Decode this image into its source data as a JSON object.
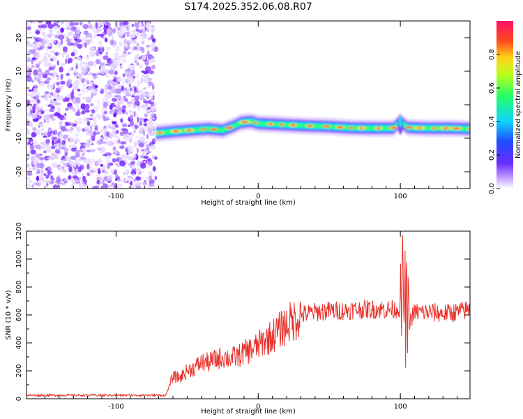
{
  "title": "S174.2025.352.06.08.R07",
  "colors": {
    "snr_line": "#e8312a",
    "noise": "#8a3dff",
    "axis": "#000000"
  },
  "chart_data": [
    {
      "type": "heatmap",
      "name": "spectrogram",
      "xlabel": "Height of straight line (km)",
      "ylabel": "Frequency (Hz)",
      "xlim": [
        -163,
        149
      ],
      "ylim": [
        -25,
        25
      ],
      "xticks": [
        -100,
        0,
        100
      ],
      "yticks": [
        20,
        10,
        0,
        -10,
        -20
      ],
      "noise_region_x": [
        -163,
        -72
      ],
      "signal_track": {
        "x": [
          -72,
          -60,
          -45,
          -35,
          -25,
          -18,
          -12,
          -5,
          0,
          10,
          20,
          35,
          50,
          65,
          80,
          95,
          100,
          105,
          120,
          135,
          149
        ],
        "freq": [
          -8.5,
          -8,
          -7.5,
          -7.2,
          -7.6,
          -6.5,
          -5.3,
          -5,
          -5.6,
          -5.8,
          -6,
          -6.3,
          -6.5,
          -6.9,
          -7,
          -7,
          -5,
          -6.8,
          -7,
          -7,
          -7.2
        ]
      },
      "colorbar": {
        "label": "Normalized spectral amplitude",
        "range": [
          0,
          1
        ],
        "ticks": [
          0.0,
          0.2,
          0.4,
          0.6,
          0.8
        ],
        "tick_labels": [
          "0.0",
          "0.2",
          "0.4",
          "0.6",
          "0.8"
        ]
      }
    },
    {
      "type": "line",
      "name": "snr",
      "xlabel": "Height of straight line (km)",
      "ylabel": "SNR (10 * v/v)",
      "xlim": [
        -163,
        149
      ],
      "ylim": [
        0,
        1200
      ],
      "xticks": [
        -100,
        0,
        100
      ],
      "yticks": [
        0,
        200,
        400,
        600,
        800,
        1000,
        1200
      ],
      "series": [
        {
          "name": "SNR",
          "x": [
            -163,
            -140,
            -120,
            -100,
            -80,
            -70,
            -65,
            -60,
            -55,
            -50,
            -45,
            -40,
            -35,
            -30,
            -25,
            -20,
            -15,
            -10,
            -5,
            0,
            5,
            10,
            15,
            20,
            25,
            30,
            35,
            40,
            50,
            60,
            70,
            80,
            90,
            95,
            100,
            102,
            104,
            106,
            110,
            120,
            130,
            140,
            149
          ],
          "y": [
            25,
            25,
            25,
            25,
            25,
            25,
            25,
            160,
            150,
            200,
            220,
            260,
            260,
            280,
            300,
            290,
            300,
            330,
            350,
            380,
            420,
            450,
            490,
            530,
            560,
            600,
            610,
            620,
            630,
            630,
            640,
            640,
            640,
            640,
            650,
            800,
            600,
            550,
            620,
            620,
            610,
            620,
            640
          ]
        }
      ]
    }
  ]
}
